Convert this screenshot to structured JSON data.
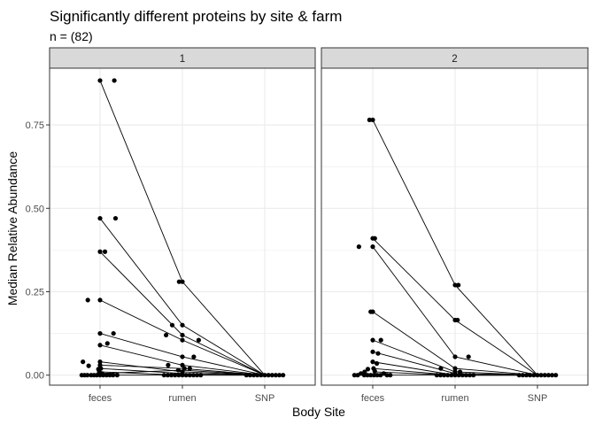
{
  "chart_data": {
    "type": "scatter",
    "title": "Significantly different proteins by site & farm",
    "subtitle": "n = (82)",
    "xlabel": "Body Site",
    "ylabel": "Median Relative Abundance",
    "categories": [
      "feces",
      "rumen",
      "SNP"
    ],
    "ylim": [
      -0.03,
      0.92
    ],
    "yticks": [
      0.0,
      0.25,
      0.5,
      0.75
    ],
    "ytick_labels": [
      "0.00",
      "0.25",
      "0.50",
      "0.75"
    ],
    "grid": true,
    "legend": "none",
    "facets": [
      {
        "label": "1",
        "lines": [
          [
            0.883,
            0.28,
            0.0
          ],
          [
            0.47,
            0.15,
            0.0
          ],
          [
            0.37,
            0.12,
            0.0
          ],
          [
            0.225,
            0.105,
            0.0
          ],
          [
            0.125,
            0.055,
            0.0
          ],
          [
            0.09,
            0.03,
            0.0
          ],
          [
            0.04,
            0.01,
            0.0
          ],
          [
            0.03,
            0.02,
            0.0
          ],
          [
            0.02,
            0.005,
            0.0
          ],
          [
            0.01,
            0.0,
            0.0
          ],
          [
            0.005,
            0.015,
            0.0
          ],
          [
            0.0,
            0.0,
            0.0
          ]
        ],
        "points": [
          {
            "x": "feces",
            "offset": 0.0,
            "y": 0.883
          },
          {
            "x": "feces",
            "offset": 0.35,
            "y": 0.883
          },
          {
            "x": "feces",
            "offset": 0.0,
            "y": 0.47
          },
          {
            "x": "feces",
            "offset": 0.38,
            "y": 0.47
          },
          {
            "x": "feces",
            "offset": 0.0,
            "y": 0.37
          },
          {
            "x": "feces",
            "offset": 0.12,
            "y": 0.37
          },
          {
            "x": "feces",
            "offset": -0.3,
            "y": 0.225
          },
          {
            "x": "feces",
            "offset": 0.0,
            "y": 0.225
          },
          {
            "x": "feces",
            "offset": 0.0,
            "y": 0.125
          },
          {
            "x": "feces",
            "offset": 0.33,
            "y": 0.125
          },
          {
            "x": "feces",
            "offset": 0.0,
            "y": 0.09
          },
          {
            "x": "feces",
            "offset": 0.18,
            "y": 0.095
          },
          {
            "x": "feces",
            "offset": -0.42,
            "y": 0.04
          },
          {
            "x": "feces",
            "offset": 0.0,
            "y": 0.04
          },
          {
            "x": "feces",
            "offset": -0.28,
            "y": 0.028
          },
          {
            "x": "feces",
            "offset": 0.0,
            "y": 0.03
          },
          {
            "x": "feces",
            "offset": -0.04,
            "y": 0.018
          },
          {
            "x": "feces",
            "offset": 0.02,
            "y": 0.02
          },
          {
            "x": "feces",
            "offset": -0.02,
            "y": 0.01
          },
          {
            "x": "feces",
            "offset": 0.05,
            "y": 0.005
          },
          {
            "x": "feces",
            "offset": -0.45,
            "y": 0.0
          },
          {
            "x": "feces",
            "offset": -0.38,
            "y": 0.0
          },
          {
            "x": "feces",
            "offset": -0.31,
            "y": 0.0
          },
          {
            "x": "feces",
            "offset": -0.22,
            "y": 0.0
          },
          {
            "x": "feces",
            "offset": -0.15,
            "y": 0.0
          },
          {
            "x": "feces",
            "offset": -0.08,
            "y": 0.0
          },
          {
            "x": "feces",
            "offset": 0.0,
            "y": 0.0
          },
          {
            "x": "feces",
            "offset": 0.08,
            "y": 0.0
          },
          {
            "x": "feces",
            "offset": 0.16,
            "y": 0.0
          },
          {
            "x": "feces",
            "offset": 0.24,
            "y": 0.0
          },
          {
            "x": "feces",
            "offset": 0.32,
            "y": 0.0
          },
          {
            "x": "feces",
            "offset": 0.42,
            "y": 0.0
          },
          {
            "x": "rumen",
            "offset": -0.08,
            "y": 0.28
          },
          {
            "x": "rumen",
            "offset": 0.0,
            "y": 0.28
          },
          {
            "x": "rumen",
            "offset": -0.25,
            "y": 0.15
          },
          {
            "x": "rumen",
            "offset": 0.0,
            "y": 0.15
          },
          {
            "x": "rumen",
            "offset": -0.4,
            "y": 0.12
          },
          {
            "x": "rumen",
            "offset": 0.0,
            "y": 0.12
          },
          {
            "x": "rumen",
            "offset": 0.0,
            "y": 0.105
          },
          {
            "x": "rumen",
            "offset": 0.4,
            "y": 0.105
          },
          {
            "x": "rumen",
            "offset": 0.0,
            "y": 0.055
          },
          {
            "x": "rumen",
            "offset": 0.28,
            "y": 0.055
          },
          {
            "x": "rumen",
            "offset": -0.35,
            "y": 0.03
          },
          {
            "x": "rumen",
            "offset": 0.0,
            "y": 0.03
          },
          {
            "x": "rumen",
            "offset": 0.05,
            "y": 0.02
          },
          {
            "x": "rumen",
            "offset": 0.18,
            "y": 0.02
          },
          {
            "x": "rumen",
            "offset": -0.1,
            "y": 0.015
          },
          {
            "x": "rumen",
            "offset": 0.0,
            "y": 0.01
          },
          {
            "x": "rumen",
            "offset": -0.45,
            "y": 0.0
          },
          {
            "x": "rumen",
            "offset": -0.36,
            "y": 0.0
          },
          {
            "x": "rumen",
            "offset": -0.27,
            "y": 0.0
          },
          {
            "x": "rumen",
            "offset": -0.18,
            "y": 0.0
          },
          {
            "x": "rumen",
            "offset": -0.09,
            "y": 0.0
          },
          {
            "x": "rumen",
            "offset": 0.0,
            "y": 0.0
          },
          {
            "x": "rumen",
            "offset": 0.09,
            "y": 0.0
          },
          {
            "x": "rumen",
            "offset": 0.18,
            "y": 0.0
          },
          {
            "x": "rumen",
            "offset": 0.27,
            "y": 0.0
          },
          {
            "x": "rumen",
            "offset": 0.36,
            "y": 0.0
          },
          {
            "x": "rumen",
            "offset": 0.45,
            "y": 0.0
          },
          {
            "x": "SNP",
            "offset": -0.45,
            "y": 0.0
          },
          {
            "x": "SNP",
            "offset": -0.36,
            "y": 0.0
          },
          {
            "x": "SNP",
            "offset": -0.27,
            "y": 0.0
          },
          {
            "x": "SNP",
            "offset": -0.18,
            "y": 0.0
          },
          {
            "x": "SNP",
            "offset": -0.09,
            "y": 0.0
          },
          {
            "x": "SNP",
            "offset": 0.0,
            "y": 0.0
          },
          {
            "x": "SNP",
            "offset": 0.09,
            "y": 0.0
          },
          {
            "x": "SNP",
            "offset": 0.18,
            "y": 0.0
          },
          {
            "x": "SNP",
            "offset": 0.27,
            "y": 0.0
          },
          {
            "x": "SNP",
            "offset": 0.36,
            "y": 0.0
          },
          {
            "x": "SNP",
            "offset": 0.45,
            "y": 0.0
          }
        ]
      },
      {
        "label": "2",
        "lines": [
          [
            0.765,
            0.27,
            0.0
          ],
          [
            0.41,
            0.165,
            0.0
          ],
          [
            0.385,
            0.055,
            0.0
          ],
          [
            0.19,
            0.02,
            0.0
          ],
          [
            0.105,
            0.01,
            0.0
          ],
          [
            0.07,
            0.005,
            0.0
          ],
          [
            0.04,
            0.0,
            0.0
          ],
          [
            0.02,
            0.0,
            0.0
          ],
          [
            0.01,
            0.0,
            0.0
          ],
          [
            0.0,
            0.0,
            0.0
          ]
        ],
        "points": [
          {
            "x": "feces",
            "offset": -0.08,
            "y": 0.765
          },
          {
            "x": "feces",
            "offset": 0.0,
            "y": 0.765
          },
          {
            "x": "feces",
            "offset": 0.0,
            "y": 0.41
          },
          {
            "x": "feces",
            "offset": 0.05,
            "y": 0.41
          },
          {
            "x": "feces",
            "offset": -0.34,
            "y": 0.385
          },
          {
            "x": "feces",
            "offset": 0.0,
            "y": 0.385
          },
          {
            "x": "feces",
            "offset": -0.05,
            "y": 0.19
          },
          {
            "x": "feces",
            "offset": 0.0,
            "y": 0.19
          },
          {
            "x": "feces",
            "offset": 0.0,
            "y": 0.105
          },
          {
            "x": "feces",
            "offset": 0.2,
            "y": 0.105
          },
          {
            "x": "feces",
            "offset": 0.0,
            "y": 0.07
          },
          {
            "x": "feces",
            "offset": 0.13,
            "y": 0.065
          },
          {
            "x": "feces",
            "offset": 0.0,
            "y": 0.04
          },
          {
            "x": "feces",
            "offset": 0.1,
            "y": 0.035
          },
          {
            "x": "feces",
            "offset": -0.12,
            "y": 0.018
          },
          {
            "x": "feces",
            "offset": 0.02,
            "y": 0.02
          },
          {
            "x": "feces",
            "offset": -0.2,
            "y": 0.01
          },
          {
            "x": "feces",
            "offset": 0.05,
            "y": 0.012
          },
          {
            "x": "feces",
            "offset": -0.45,
            "y": 0.0
          },
          {
            "x": "feces",
            "offset": -0.37,
            "y": 0.0
          },
          {
            "x": "feces",
            "offset": -0.29,
            "y": 0.005
          },
          {
            "x": "feces",
            "offset": -0.21,
            "y": 0.0
          },
          {
            "x": "feces",
            "offset": -0.13,
            "y": 0.0
          },
          {
            "x": "feces",
            "offset": -0.05,
            "y": 0.0
          },
          {
            "x": "feces",
            "offset": 0.03,
            "y": 0.0
          },
          {
            "x": "feces",
            "offset": 0.11,
            "y": 0.0
          },
          {
            "x": "feces",
            "offset": 0.19,
            "y": 0.0
          },
          {
            "x": "feces",
            "offset": 0.27,
            "y": 0.005
          },
          {
            "x": "feces",
            "offset": 0.35,
            "y": 0.0
          },
          {
            "x": "feces",
            "offset": 0.43,
            "y": 0.0
          },
          {
            "x": "rumen",
            "offset": 0.0,
            "y": 0.27
          },
          {
            "x": "rumen",
            "offset": 0.08,
            "y": 0.27
          },
          {
            "x": "rumen",
            "offset": 0.0,
            "y": 0.165
          },
          {
            "x": "rumen",
            "offset": 0.06,
            "y": 0.165
          },
          {
            "x": "rumen",
            "offset": 0.0,
            "y": 0.055
          },
          {
            "x": "rumen",
            "offset": 0.33,
            "y": 0.055
          },
          {
            "x": "rumen",
            "offset": -0.35,
            "y": 0.02
          },
          {
            "x": "rumen",
            "offset": 0.0,
            "y": 0.02
          },
          {
            "x": "rumen",
            "offset": 0.12,
            "y": 0.01
          },
          {
            "x": "rumen",
            "offset": 0.0,
            "y": 0.01
          },
          {
            "x": "rumen",
            "offset": -0.45,
            "y": 0.0
          },
          {
            "x": "rumen",
            "offset": -0.36,
            "y": 0.0
          },
          {
            "x": "rumen",
            "offset": -0.27,
            "y": 0.0
          },
          {
            "x": "rumen",
            "offset": -0.18,
            "y": 0.0
          },
          {
            "x": "rumen",
            "offset": -0.09,
            "y": 0.0
          },
          {
            "x": "rumen",
            "offset": 0.0,
            "y": 0.0
          },
          {
            "x": "rumen",
            "offset": 0.09,
            "y": 0.0
          },
          {
            "x": "rumen",
            "offset": 0.18,
            "y": 0.0
          },
          {
            "x": "rumen",
            "offset": 0.27,
            "y": 0.0
          },
          {
            "x": "rumen",
            "offset": 0.36,
            "y": 0.0
          },
          {
            "x": "rumen",
            "offset": 0.45,
            "y": 0.0
          },
          {
            "x": "SNP",
            "offset": -0.45,
            "y": 0.0
          },
          {
            "x": "SNP",
            "offset": -0.36,
            "y": 0.0
          },
          {
            "x": "SNP",
            "offset": -0.27,
            "y": 0.0
          },
          {
            "x": "SNP",
            "offset": -0.18,
            "y": 0.0
          },
          {
            "x": "SNP",
            "offset": -0.09,
            "y": 0.0
          },
          {
            "x": "SNP",
            "offset": 0.0,
            "y": 0.0
          },
          {
            "x": "SNP",
            "offset": 0.09,
            "y": 0.0
          },
          {
            "x": "SNP",
            "offset": 0.18,
            "y": 0.0
          },
          {
            "x": "SNP",
            "offset": 0.27,
            "y": 0.0
          },
          {
            "x": "SNP",
            "offset": 0.36,
            "y": 0.0
          },
          {
            "x": "SNP",
            "offset": 0.45,
            "y": 0.0
          }
        ]
      }
    ],
    "colors": {
      "points": "#000000",
      "lines": "#000000",
      "strip_fill": "#d9d9d9",
      "panel_border": "#333333",
      "grid": "#ebebeb"
    }
  }
}
